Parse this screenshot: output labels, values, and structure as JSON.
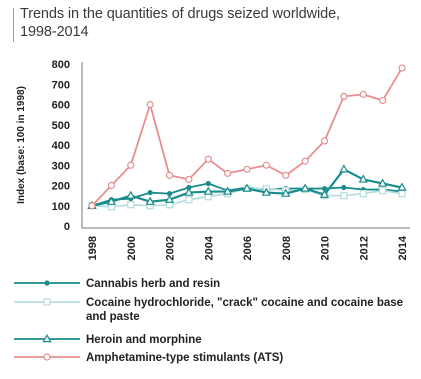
{
  "title": {
    "line1": "Trends in the quantities of drugs seized worldwide,",
    "line2": "1998-2014"
  },
  "chart_data": {
    "type": "line",
    "x": [
      1998,
      1999,
      2000,
      2001,
      2002,
      2003,
      2004,
      2005,
      2006,
      2007,
      2008,
      2009,
      2010,
      2011,
      2012,
      2013,
      2014
    ],
    "xticks": [
      "1998",
      "2000",
      "2002",
      "2004",
      "2006",
      "2008",
      "2010",
      "2012",
      "2014"
    ],
    "yticks": [
      "0",
      "100",
      "200",
      "300",
      "400",
      "500",
      "600",
      "700",
      "800"
    ],
    "ylabel": "Index (base: 100 in 1998)",
    "ylim": [
      0,
      800
    ],
    "xlim": [
      1998,
      2014
    ],
    "grid": false,
    "legend_position": "bottom",
    "series": [
      {
        "name": "Cannabis herb and resin",
        "color": "#1a8c8c",
        "marker": "dot",
        "values": [
          100,
          130,
          135,
          165,
          160,
          190,
          210,
          175,
          190,
          180,
          185,
          185,
          185,
          190,
          180,
          180,
          170
        ]
      },
      {
        "name": "Cocaine hydrochloride, \"crack\" cocaine and cocaine base and paste",
        "color": "#b9dede",
        "marker": "square",
        "values": [
          100,
          95,
          105,
          100,
          105,
          130,
          145,
          160,
          185,
          185,
          175,
          180,
          150,
          150,
          160,
          175,
          160
        ]
      },
      {
        "name": "Heroin and morphine",
        "color": "#1a8c8c",
        "marker": "triangle",
        "values": [
          100,
          120,
          150,
          120,
          130,
          165,
          170,
          170,
          185,
          165,
          160,
          185,
          155,
          280,
          230,
          210,
          190
        ]
      },
      {
        "name": "Amphetamine-type stimulants (ATS)",
        "color": "#e88e8e",
        "marker": "circle",
        "values": [
          100,
          200,
          300,
          600,
          250,
          230,
          330,
          260,
          280,
          300,
          250,
          320,
          420,
          640,
          650,
          620,
          780
        ]
      }
    ]
  }
}
